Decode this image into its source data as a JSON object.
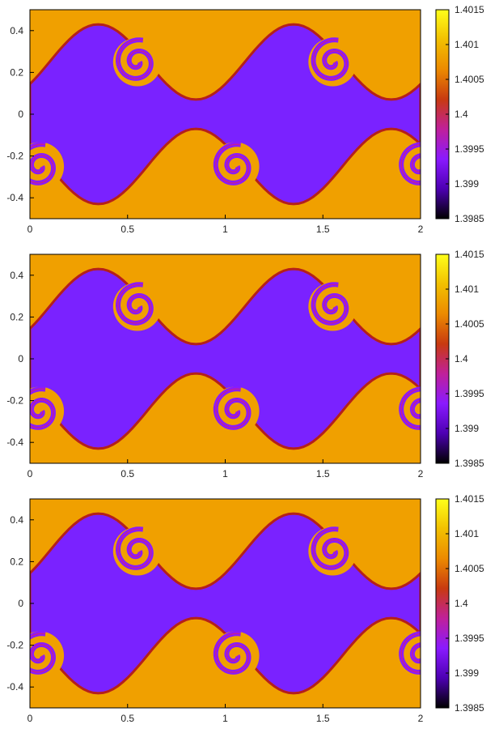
{
  "chart_data": [
    {
      "type": "heatmap",
      "x_ticks": [
        "0",
        "0.5",
        "1",
        "1.5",
        "2"
      ],
      "x_tick_values": [
        0,
        0.5,
        1,
        1.5,
        2
      ],
      "y_ticks": [
        "0.4",
        "0.2",
        "0",
        "-0.2",
        "-0.4"
      ],
      "y_tick_values": [
        0.4,
        0.2,
        0,
        -0.2,
        -0.4
      ],
      "xlim": [
        0,
        2
      ],
      "ylim": [
        -0.5,
        0.5
      ],
      "colorbar": {
        "ticks": [
          "1.4015",
          "1.401",
          "1.4005",
          "1.4",
          "1.3995",
          "1.399",
          "1.3985"
        ],
        "tick_values": [
          1.4015,
          1.401,
          1.4005,
          1.4,
          1.3995,
          1.399,
          1.3985
        ],
        "range": [
          1.3985,
          1.4015
        ],
        "palette": [
          "#000000",
          "#4d00b3",
          "#8a1aff",
          "#c0209a",
          "#c83a10",
          "#ec8a00",
          "#f2c000",
          "#ffff1a"
        ]
      },
      "high_color": "#f0a000",
      "low_color": "#7a22ff",
      "grid": false
    },
    {
      "type": "heatmap",
      "x_ticks": [
        "0",
        "0.5",
        "1",
        "1.5",
        "2"
      ],
      "x_tick_values": [
        0,
        0.5,
        1,
        1.5,
        2
      ],
      "y_ticks": [
        "0.4",
        "0.2",
        "0",
        "-0.2",
        "-0.4"
      ],
      "y_tick_values": [
        0.4,
        0.2,
        0,
        -0.2,
        -0.4
      ],
      "xlim": [
        0,
        2
      ],
      "ylim": [
        -0.5,
        0.5
      ],
      "colorbar": {
        "ticks": [
          "1.4015",
          "1.401",
          "1.4005",
          "1.4",
          "1.3995",
          "1.399",
          "1.3985"
        ],
        "tick_values": [
          1.4015,
          1.401,
          1.4005,
          1.4,
          1.3995,
          1.399,
          1.3985
        ],
        "range": [
          1.3985,
          1.4015
        ],
        "palette": [
          "#000000",
          "#4d00b3",
          "#8a1aff",
          "#c0209a",
          "#c83a10",
          "#ec8a00",
          "#f2c000",
          "#ffff1a"
        ]
      },
      "high_color": "#f0a000",
      "low_color": "#7a22ff",
      "grid": false
    },
    {
      "type": "heatmap",
      "x_ticks": [
        "0",
        "0.5",
        "1",
        "1.5",
        "2"
      ],
      "x_tick_values": [
        0,
        0.5,
        1,
        1.5,
        2
      ],
      "y_ticks": [
        "0.4",
        "0.2",
        "0",
        "-0.2",
        "-0.4"
      ],
      "y_tick_values": [
        0.4,
        0.2,
        0,
        -0.2,
        -0.4
      ],
      "xlim": [
        0,
        2
      ],
      "ylim": [
        -0.5,
        0.5
      ],
      "colorbar": {
        "ticks": [
          "1.4015",
          "1.401",
          "1.4005",
          "1.4",
          "1.3995",
          "1.399",
          "1.3985"
        ],
        "tick_values": [
          1.4015,
          1.401,
          1.4005,
          1.4,
          1.3995,
          1.399,
          1.3985
        ],
        "range": [
          1.3985,
          1.4015
        ],
        "palette": [
          "#000000",
          "#4d00b3",
          "#8a1aff",
          "#c0209a",
          "#c83a10",
          "#ec8a00",
          "#f2c000",
          "#ffff1a"
        ]
      },
      "high_color": "#f0a000",
      "low_color": "#7a22ff",
      "grid": false
    }
  ]
}
